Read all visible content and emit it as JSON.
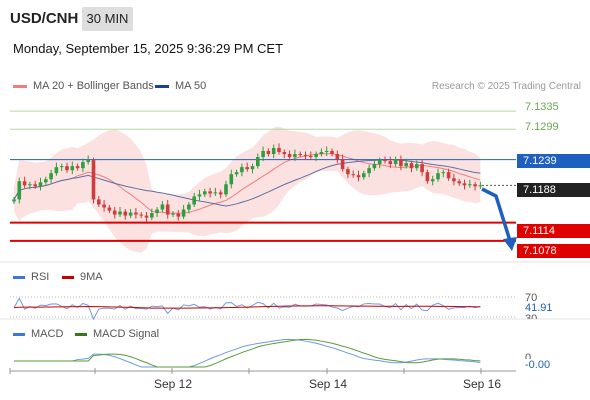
{
  "header": {
    "pair": "USD/CNH",
    "timeframe": "30 MIN",
    "datetime": "Monday, September 15, 2025 9:36:29 PM CET"
  },
  "legend_main": [
    {
      "label": "MA 20 + Bollinger Bands",
      "color": "#f47c7c"
    },
    {
      "label": "MA 50",
      "color": "#1c4587"
    }
  ],
  "credit": "Research © 2025 Trading Central",
  "legend_rsi": [
    {
      "label": "RSI",
      "color": "#3c78d8"
    },
    {
      "label": "9MA",
      "color": "#cc0000"
    }
  ],
  "legend_macd": [
    {
      "label": "MACD",
      "color": "#3c78d8"
    },
    {
      "label": "MACD Signal",
      "color": "#38761d"
    }
  ],
  "chart_data": {
    "type": "candlestick",
    "price_range": [
      7.104,
      7.1365
    ],
    "levels": [
      {
        "value": 7.1335,
        "label": "7.1335",
        "kind": "resistance"
      },
      {
        "value": 7.1299,
        "label": "7.1299",
        "kind": "resistance"
      },
      {
        "value": 7.1239,
        "label": "7.1239",
        "kind": "pivot"
      },
      {
        "value": 7.1114,
        "label": "7.1114",
        "kind": "support"
      },
      {
        "value": 7.1078,
        "label": "7.1078",
        "kind": "support"
      }
    ],
    "last_price": {
      "value": 7.1188,
      "label": "7.1188"
    },
    "closes": [
      7.116,
      7.1196,
      7.1188,
      7.119,
      7.1186,
      7.1194,
      7.12,
      7.1212,
      7.1224,
      7.1226,
      7.1218,
      7.1226,
      7.1222,
      7.1234,
      7.1238,
      7.116,
      7.115,
      7.1144,
      7.1138,
      7.113,
      7.1136,
      7.1128,
      7.1134,
      7.113,
      7.1128,
      7.1124,
      7.1133,
      7.114,
      7.115,
      7.113,
      7.1132,
      7.1126,
      7.114,
      7.115,
      7.1166,
      7.117,
      7.1176,
      7.1172,
      7.1174,
      7.117,
      7.119,
      7.121,
      7.1214,
      7.1224,
      7.122,
      7.1226,
      7.1244,
      7.1256,
      7.125,
      7.1262,
      7.1254,
      7.125,
      7.1244,
      7.125,
      7.1248,
      7.1246,
      7.1244,
      7.125,
      7.1254,
      7.1256,
      7.125,
      7.124,
      7.122,
      7.121,
      7.1208,
      7.1204,
      7.1212,
      7.1222,
      7.123,
      7.1238,
      7.1236,
      7.123,
      7.124,
      7.1226,
      7.1232,
      7.1222,
      7.123,
      7.1214,
      7.1196,
      7.12,
      7.1212,
      7.1214,
      7.1202,
      7.1196,
      7.1192,
      7.1188,
      7.119,
      7.1186,
      7.1188
    ],
    "rsi": {
      "levels": [
        70,
        30
      ],
      "last": 41.91,
      "last_label": "41.91",
      "tick_labels": [
        "70",
        "30"
      ]
    },
    "macd": {
      "zero_label": "0",
      "last": -0.0,
      "last_label": "-0.00"
    },
    "x_labels": [
      "Sep 12",
      "Sep 14",
      "Sep 16"
    ],
    "forecast": "down"
  }
}
